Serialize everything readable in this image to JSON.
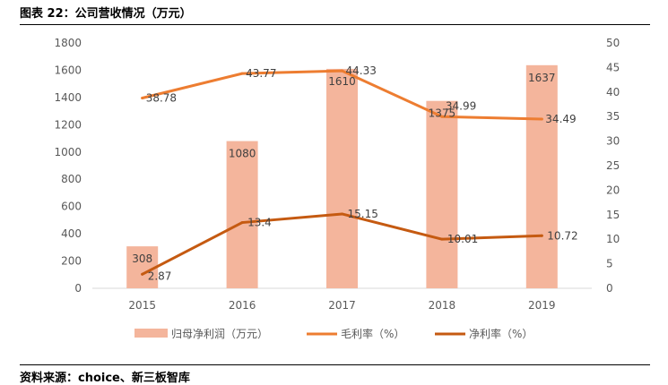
{
  "figure": {
    "title": "图表 22：公司营收情况（万元）",
    "source": "资料来源：choice、新三板智库"
  },
  "chart_data": {
    "type": "bar",
    "categories": [
      "2015",
      "2016",
      "2017",
      "2018",
      "2019"
    ],
    "series": [
      {
        "name": "归母净利润（万元）",
        "kind": "bar",
        "axis": "left",
        "values": [
          308,
          1080,
          1610,
          1375,
          1637
        ],
        "color": "#F4B59C"
      },
      {
        "name": "毛利率（%）",
        "kind": "line",
        "axis": "right",
        "values": [
          38.78,
          43.77,
          44.33,
          34.99,
          34.49
        ],
        "color": "#ED7D31"
      },
      {
        "name": "净利率（%）",
        "kind": "line",
        "axis": "right",
        "values": [
          2.87,
          13.4,
          15.15,
          10.01,
          10.72
        ],
        "color": "#C55A11"
      }
    ],
    "y_left": {
      "range": [
        0,
        1800
      ],
      "ticks": [
        "0",
        "200",
        "400",
        "600",
        "800",
        "1000",
        "1200",
        "1400",
        "1600",
        "1800"
      ]
    },
    "y_right": {
      "range": [
        0,
        50
      ],
      "ticks": [
        "0",
        "5",
        "10",
        "15",
        "20",
        "25",
        "30",
        "35",
        "40",
        "45",
        "50"
      ]
    },
    "bar_labels": [
      "308",
      "1080",
      "1610",
      "1375",
      "1637"
    ],
    "gross_labels": [
      "38.78",
      "43.77",
      "44.33",
      "34.99",
      "34.49"
    ],
    "net_labels": [
      "2.87",
      "13.4",
      "15.15",
      "10.01",
      "10.72"
    ],
    "legend_position": "bottom",
    "grid": false
  }
}
